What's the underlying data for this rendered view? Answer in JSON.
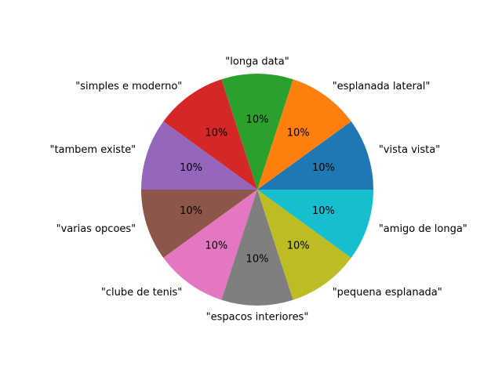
{
  "chart_data": {
    "type": "pie",
    "title": "",
    "start_angle_deg": 0,
    "direction": "counterclockwise",
    "slices": [
      {
        "label": "\"vista vista\"",
        "value": 10,
        "pct_label": "10%",
        "color": "#1f77b4"
      },
      {
        "label": "\"esplanada lateral\"",
        "value": 10,
        "pct_label": "10%",
        "color": "#ff7f0e"
      },
      {
        "label": "\"longa data\"",
        "value": 10,
        "pct_label": "10%",
        "color": "#2ca02c"
      },
      {
        "label": "\"simples e moderno\"",
        "value": 10,
        "pct_label": "10%",
        "color": "#d62728"
      },
      {
        "label": "\"tambem existe\"",
        "value": 10,
        "pct_label": "10%",
        "color": "#9467bd"
      },
      {
        "label": "\"varias opcoes\"",
        "value": 10,
        "pct_label": "10%",
        "color": "#8c564b"
      },
      {
        "label": "\"clube de tenis\"",
        "value": 10,
        "pct_label": "10%",
        "color": "#e377c2"
      },
      {
        "label": "\"espacos interiores\"",
        "value": 10,
        "pct_label": "10%",
        "color": "#7f7f7f"
      },
      {
        "label": "\"pequena esplanada\"",
        "value": 10,
        "pct_label": "10%",
        "color": "#bcbd22"
      },
      {
        "label": "\"amigo de longa\"",
        "value": 10,
        "pct_label": "10%",
        "color": "#17becf"
      }
    ]
  }
}
